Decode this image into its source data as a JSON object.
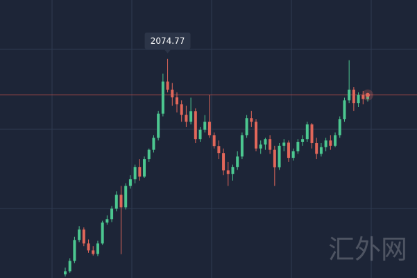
{
  "chart_data": {
    "type": "candlestick",
    "series": [
      {
        "open": [
          1270,
          1281,
          1320,
          1398,
          1437,
          1385,
          1359,
          1346,
          1385,
          1463,
          1476,
          1515,
          1567,
          1520,
          1600,
          1625,
          1671,
          1635,
          1700,
          1735,
          1780,
          1870,
          1990,
          1960,
          1931,
          1905,
          1866,
          1840,
          1879,
          1775,
          1810,
          1840,
          1790,
          1749,
          1723,
          1658,
          1645,
          1671,
          1710,
          1790,
          1853,
          1840,
          1740,
          1755,
          1775,
          1735,
          1670,
          1750,
          1762,
          1705,
          1730,
          1765,
          1775,
          1830,
          1760,
          1720,
          1745,
          1770,
          1750,
          1790,
          1850,
          1920,
          1960,
          1910,
          1940,
          1925
        ],
        "high": [
          1295,
          1330,
          1410,
          1450,
          1445,
          1400,
          1375,
          1395,
          1470,
          1490,
          1525,
          1580,
          1600,
          1610,
          1640,
          1680,
          1700,
          1710,
          1740,
          1790,
          1880,
          2020,
          2074.77,
          1985,
          1950,
          1920,
          1900,
          1930,
          1890,
          1820,
          1865,
          1940,
          1800,
          1770,
          1740,
          1690,
          1680,
          1730,
          1800,
          1865,
          1880,
          1850,
          1770,
          1780,
          1790,
          1750,
          1760,
          1775,
          1770,
          1740,
          1775,
          1790,
          1840,
          1835,
          1780,
          1760,
          1780,
          1790,
          1800,
          1860,
          1930,
          2070,
          1970,
          1950,
          1955,
          1945
        ],
        "low": [
          1262,
          1275,
          1312,
          1390,
          1375,
          1350,
          1340,
          1338,
          1380,
          1455,
          1465,
          1505,
          1345,
          1512,
          1590,
          1610,
          1620,
          1630,
          1690,
          1725,
          1770,
          1860,
          1950,
          1900,
          1875,
          1840,
          1820,
          1830,
          1760,
          1765,
          1800,
          1780,
          1740,
          1700,
          1640,
          1600,
          1620,
          1660,
          1700,
          1780,
          1820,
          1730,
          1720,
          1735,
          1720,
          1600,
          1660,
          1730,
          1690,
          1695,
          1720,
          1750,
          1765,
          1740,
          1700,
          1710,
          1730,
          1735,
          1745,
          1780,
          1840,
          1910,
          1880,
          1895,
          1905,
          1915
        ],
        "close": [
          1281,
          1320,
          1398,
          1437,
          1385,
          1359,
          1346,
          1385,
          1463,
          1476,
          1515,
          1567,
          1520,
          1600,
          1625,
          1671,
          1635,
          1700,
          1735,
          1780,
          1870,
          1990,
          1960,
          1931,
          1905,
          1866,
          1840,
          1879,
          1775,
          1810,
          1840,
          1790,
          1749,
          1723,
          1658,
          1645,
          1671,
          1710,
          1790,
          1853,
          1840,
          1740,
          1755,
          1775,
          1735,
          1670,
          1750,
          1762,
          1705,
          1730,
          1765,
          1775,
          1830,
          1760,
          1720,
          1745,
          1770,
          1750,
          1790,
          1850,
          1920,
          1960,
          1910,
          1940,
          1925,
          1940
        ]
      }
    ],
    "up_color": "#4cc790",
    "down_color": "#e2675a",
    "ylim": [
      1256,
      2295
    ],
    "watermark": "汇外网"
  }
}
